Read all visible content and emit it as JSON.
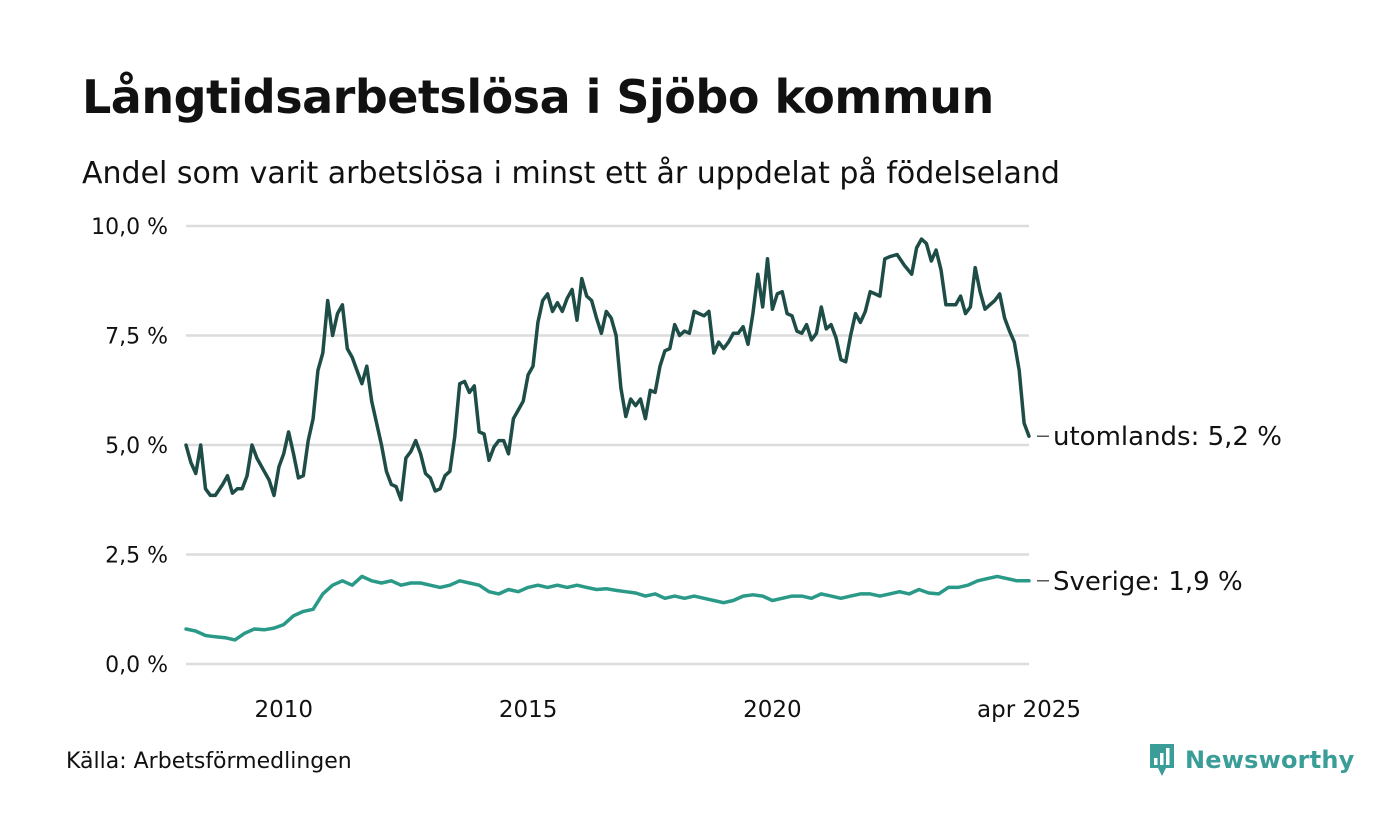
{
  "title": "Långtidsarbetslösa i Sjöbo kommun",
  "subtitle": "Andel som varit arbetslösa i minst ett år uppdelat på födelseland",
  "source": "Källa: Arbetsförmedlingen",
  "brand": {
    "name": "Newsworthy",
    "icon": "newsworthy-logo-icon",
    "color": "#3a9d97"
  },
  "chart_data": {
    "type": "line",
    "y_ticks": [
      {
        "value": 0,
        "label": "0,0 %"
      },
      {
        "value": 2.5,
        "label": "2,5 %"
      },
      {
        "value": 5,
        "label": "5,0 %"
      },
      {
        "value": 7.5,
        "label": "7,5 %"
      },
      {
        "value": 10,
        "label": "10,0 %"
      }
    ],
    "x_ticks": [
      {
        "value": 2010,
        "label": "2010"
      },
      {
        "value": 2015,
        "label": "2015"
      },
      {
        "value": 2020,
        "label": "2020"
      },
      {
        "value": 2025.25,
        "label": "apr 2025"
      }
    ],
    "ylim": [
      0,
      10
    ],
    "xlim": [
      2008.0,
      2025.25
    ],
    "grid": true,
    "series": [
      {
        "name": "utomlands",
        "end_label": "utomlands: 5,2 %",
        "color": "#1e4d48",
        "points": [
          [
            2008.0,
            5.0
          ],
          [
            2008.1,
            4.6
          ],
          [
            2008.2,
            4.35
          ],
          [
            2008.3,
            5.0
          ],
          [
            2008.4,
            4.0
          ],
          [
            2008.5,
            3.85
          ],
          [
            2008.6,
            3.85
          ],
          [
            2008.75,
            4.1
          ],
          [
            2008.85,
            4.3
          ],
          [
            2008.95,
            3.9
          ],
          [
            2009.05,
            4.0
          ],
          [
            2009.15,
            4.0
          ],
          [
            2009.25,
            4.3
          ],
          [
            2009.35,
            5.0
          ],
          [
            2009.45,
            4.7
          ],
          [
            2009.6,
            4.4
          ],
          [
            2009.7,
            4.2
          ],
          [
            2009.8,
            3.85
          ],
          [
            2009.9,
            4.5
          ],
          [
            2010.0,
            4.8
          ],
          [
            2010.1,
            5.3
          ],
          [
            2010.2,
            4.8
          ],
          [
            2010.3,
            4.25
          ],
          [
            2010.4,
            4.3
          ],
          [
            2010.5,
            5.1
          ],
          [
            2010.6,
            5.6
          ],
          [
            2010.7,
            6.7
          ],
          [
            2010.8,
            7.1
          ],
          [
            2010.9,
            8.3
          ],
          [
            2011.0,
            7.5
          ],
          [
            2011.1,
            8.0
          ],
          [
            2011.2,
            8.2
          ],
          [
            2011.3,
            7.2
          ],
          [
            2011.4,
            7.0
          ],
          [
            2011.5,
            6.7
          ],
          [
            2011.6,
            6.4
          ],
          [
            2011.7,
            6.8
          ],
          [
            2011.8,
            6.0
          ],
          [
            2011.9,
            5.5
          ],
          [
            2012.0,
            5.0
          ],
          [
            2012.1,
            4.4
          ],
          [
            2012.2,
            4.1
          ],
          [
            2012.3,
            4.05
          ],
          [
            2012.4,
            3.75
          ],
          [
            2012.5,
            4.7
          ],
          [
            2012.6,
            4.85
          ],
          [
            2012.7,
            5.1
          ],
          [
            2012.8,
            4.8
          ],
          [
            2012.9,
            4.35
          ],
          [
            2013.0,
            4.25
          ],
          [
            2013.1,
            3.95
          ],
          [
            2013.2,
            4.0
          ],
          [
            2013.3,
            4.3
          ],
          [
            2013.4,
            4.4
          ],
          [
            2013.5,
            5.2
          ],
          [
            2013.6,
            6.4
          ],
          [
            2013.7,
            6.45
          ],
          [
            2013.8,
            6.2
          ],
          [
            2013.9,
            6.35
          ],
          [
            2014.0,
            5.3
          ],
          [
            2014.1,
            5.25
          ],
          [
            2014.2,
            4.65
          ],
          [
            2014.3,
            4.95
          ],
          [
            2014.4,
            5.1
          ],
          [
            2014.5,
            5.1
          ],
          [
            2014.6,
            4.8
          ],
          [
            2014.7,
            5.6
          ],
          [
            2014.8,
            5.8
          ],
          [
            2014.9,
            6.0
          ],
          [
            2015.0,
            6.6
          ],
          [
            2015.1,
            6.8
          ],
          [
            2015.2,
            7.8
          ],
          [
            2015.3,
            8.3
          ],
          [
            2015.4,
            8.45
          ],
          [
            2015.5,
            8.05
          ],
          [
            2015.6,
            8.25
          ],
          [
            2015.7,
            8.05
          ],
          [
            2015.8,
            8.35
          ],
          [
            2015.9,
            8.55
          ],
          [
            2016.0,
            7.85
          ],
          [
            2016.1,
            8.8
          ],
          [
            2016.2,
            8.4
          ],
          [
            2016.3,
            8.3
          ],
          [
            2016.4,
            7.9
          ],
          [
            2016.5,
            7.55
          ],
          [
            2016.6,
            8.05
          ],
          [
            2016.7,
            7.9
          ],
          [
            2016.8,
            7.5
          ],
          [
            2016.9,
            6.3
          ],
          [
            2017.0,
            5.65
          ],
          [
            2017.1,
            6.05
          ],
          [
            2017.2,
            5.9
          ],
          [
            2017.3,
            6.05
          ],
          [
            2017.4,
            5.6
          ],
          [
            2017.5,
            6.25
          ],
          [
            2017.6,
            6.2
          ],
          [
            2017.7,
            6.8
          ],
          [
            2017.8,
            7.15
          ],
          [
            2017.9,
            7.2
          ],
          [
            2018.0,
            7.75
          ],
          [
            2018.1,
            7.5
          ],
          [
            2018.2,
            7.6
          ],
          [
            2018.3,
            7.55
          ],
          [
            2018.4,
            8.05
          ],
          [
            2018.5,
            8.0
          ],
          [
            2018.6,
            7.95
          ],
          [
            2018.7,
            8.05
          ],
          [
            2018.8,
            7.1
          ],
          [
            2018.9,
            7.35
          ],
          [
            2019.0,
            7.2
          ],
          [
            2019.1,
            7.35
          ],
          [
            2019.2,
            7.55
          ],
          [
            2019.3,
            7.55
          ],
          [
            2019.4,
            7.7
          ],
          [
            2019.5,
            7.3
          ],
          [
            2019.6,
            8.0
          ],
          [
            2019.7,
            8.9
          ],
          [
            2019.8,
            8.15
          ],
          [
            2019.9,
            9.25
          ],
          [
            2020.0,
            8.1
          ],
          [
            2020.1,
            8.45
          ],
          [
            2020.2,
            8.5
          ],
          [
            2020.3,
            8.0
          ],
          [
            2020.4,
            7.95
          ],
          [
            2020.5,
            7.6
          ],
          [
            2020.6,
            7.55
          ],
          [
            2020.7,
            7.75
          ],
          [
            2020.8,
            7.4
          ],
          [
            2020.9,
            7.55
          ],
          [
            2021.0,
            8.15
          ],
          [
            2021.1,
            7.65
          ],
          [
            2021.2,
            7.75
          ],
          [
            2021.3,
            7.45
          ],
          [
            2021.4,
            6.95
          ],
          [
            2021.5,
            6.9
          ],
          [
            2021.6,
            7.5
          ],
          [
            2021.7,
            8.0
          ],
          [
            2021.8,
            7.8
          ],
          [
            2021.9,
            8.05
          ],
          [
            2022.0,
            8.5
          ],
          [
            2022.1,
            8.45
          ],
          [
            2022.2,
            8.4
          ],
          [
            2022.3,
            9.25
          ],
          [
            2022.4,
            9.3
          ],
          [
            2022.55,
            9.35
          ],
          [
            2022.7,
            9.1
          ],
          [
            2022.85,
            8.9
          ],
          [
            2022.95,
            9.5
          ],
          [
            2023.05,
            9.7
          ],
          [
            2023.15,
            9.6
          ],
          [
            2023.25,
            9.2
          ],
          [
            2023.35,
            9.45
          ],
          [
            2023.45,
            9.0
          ],
          [
            2023.55,
            8.2
          ],
          [
            2023.65,
            8.2
          ],
          [
            2023.75,
            8.2
          ],
          [
            2023.85,
            8.4
          ],
          [
            2023.95,
            8.0
          ],
          [
            2024.05,
            8.15
          ],
          [
            2024.15,
            9.05
          ],
          [
            2024.25,
            8.5
          ],
          [
            2024.35,
            8.1
          ],
          [
            2024.45,
            8.2
          ],
          [
            2024.55,
            8.3
          ],
          [
            2024.65,
            8.45
          ],
          [
            2024.75,
            7.9
          ],
          [
            2024.85,
            7.6
          ],
          [
            2024.95,
            7.35
          ],
          [
            2025.05,
            6.7
          ],
          [
            2025.15,
            5.5
          ],
          [
            2025.25,
            5.2
          ]
        ]
      },
      {
        "name": "Sverige",
        "end_label": "Sverige: 1,9 %",
        "color": "#2a9988",
        "points": [
          [
            2008.0,
            0.8
          ],
          [
            2008.2,
            0.75
          ],
          [
            2008.4,
            0.65
          ],
          [
            2008.6,
            0.62
          ],
          [
            2008.8,
            0.6
          ],
          [
            2009.0,
            0.55
          ],
          [
            2009.2,
            0.7
          ],
          [
            2009.4,
            0.8
          ],
          [
            2009.6,
            0.78
          ],
          [
            2009.8,
            0.82
          ],
          [
            2010.0,
            0.9
          ],
          [
            2010.2,
            1.1
          ],
          [
            2010.4,
            1.2
          ],
          [
            2010.6,
            1.25
          ],
          [
            2010.8,
            1.6
          ],
          [
            2011.0,
            1.8
          ],
          [
            2011.2,
            1.9
          ],
          [
            2011.4,
            1.8
          ],
          [
            2011.6,
            2.0
          ],
          [
            2011.8,
            1.9
          ],
          [
            2012.0,
            1.85
          ],
          [
            2012.2,
            1.9
          ],
          [
            2012.4,
            1.8
          ],
          [
            2012.6,
            1.85
          ],
          [
            2012.8,
            1.85
          ],
          [
            2013.0,
            1.8
          ],
          [
            2013.2,
            1.75
          ],
          [
            2013.4,
            1.8
          ],
          [
            2013.6,
            1.9
          ],
          [
            2013.8,
            1.85
          ],
          [
            2014.0,
            1.8
          ],
          [
            2014.2,
            1.65
          ],
          [
            2014.4,
            1.6
          ],
          [
            2014.6,
            1.7
          ],
          [
            2014.8,
            1.65
          ],
          [
            2015.0,
            1.75
          ],
          [
            2015.2,
            1.8
          ],
          [
            2015.4,
            1.75
          ],
          [
            2015.6,
            1.8
          ],
          [
            2015.8,
            1.75
          ],
          [
            2016.0,
            1.8
          ],
          [
            2016.2,
            1.75
          ],
          [
            2016.4,
            1.7
          ],
          [
            2016.6,
            1.72
          ],
          [
            2016.8,
            1.68
          ],
          [
            2017.0,
            1.65
          ],
          [
            2017.2,
            1.62
          ],
          [
            2017.4,
            1.55
          ],
          [
            2017.6,
            1.6
          ],
          [
            2017.8,
            1.5
          ],
          [
            2018.0,
            1.55
          ],
          [
            2018.2,
            1.5
          ],
          [
            2018.4,
            1.55
          ],
          [
            2018.6,
            1.5
          ],
          [
            2018.8,
            1.45
          ],
          [
            2019.0,
            1.4
          ],
          [
            2019.2,
            1.45
          ],
          [
            2019.4,
            1.55
          ],
          [
            2019.6,
            1.58
          ],
          [
            2019.8,
            1.55
          ],
          [
            2020.0,
            1.45
          ],
          [
            2020.2,
            1.5
          ],
          [
            2020.4,
            1.55
          ],
          [
            2020.6,
            1.55
          ],
          [
            2020.8,
            1.5
          ],
          [
            2021.0,
            1.6
          ],
          [
            2021.2,
            1.55
          ],
          [
            2021.4,
            1.5
          ],
          [
            2021.6,
            1.55
          ],
          [
            2021.8,
            1.6
          ],
          [
            2022.0,
            1.6
          ],
          [
            2022.2,
            1.55
          ],
          [
            2022.4,
            1.6
          ],
          [
            2022.6,
            1.65
          ],
          [
            2022.8,
            1.6
          ],
          [
            2023.0,
            1.7
          ],
          [
            2023.2,
            1.62
          ],
          [
            2023.4,
            1.6
          ],
          [
            2023.6,
            1.75
          ],
          [
            2023.8,
            1.75
          ],
          [
            2024.0,
            1.8
          ],
          [
            2024.2,
            1.9
          ],
          [
            2024.4,
            1.95
          ],
          [
            2024.6,
            2.0
          ],
          [
            2024.8,
            1.95
          ],
          [
            2025.0,
            1.9
          ],
          [
            2025.25,
            1.9
          ]
        ]
      }
    ]
  }
}
